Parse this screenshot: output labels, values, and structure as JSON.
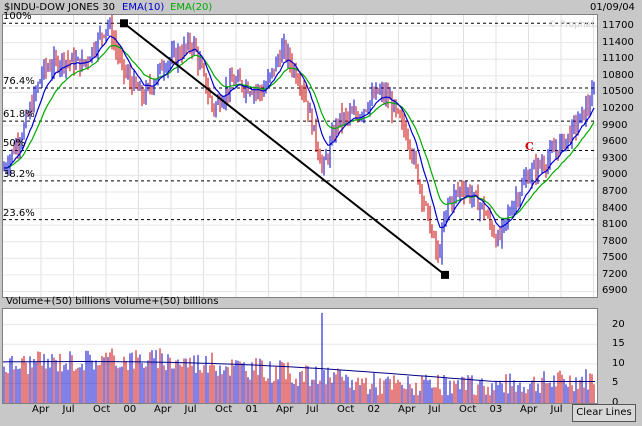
{
  "header": {
    "symbol": "$INDU-DOW JONES 30",
    "ema10_label": "EMA(10)",
    "ema20_label": "EMA(20)",
    "date": "01/09/04"
  },
  "colors": {
    "ema10": "#0000cc",
    "ema20": "#00aa00",
    "up_bar": "#0000cc",
    "down_bar": "#cc0000",
    "trend_line": "#000000",
    "annotation": "#cc0000"
  },
  "watermark": "© Prophet.Net",
  "annotation_text": "C",
  "fib_levels": [
    {
      "label": "100%",
      "price": 11750
    },
    {
      "label": "76.4%",
      "price": 10580
    },
    {
      "label": "61.8%",
      "price": 9980
    },
    {
      "label": "50%",
      "price": 9450
    },
    {
      "label": "38.2%",
      "price": 8900
    },
    {
      "label": "23.6%",
      "price": 8200
    }
  ],
  "price_axis_labels": [
    "11700",
    "11400",
    "11100",
    "10800",
    "10500",
    "10200",
    "9900",
    "9600",
    "9300",
    "9000",
    "8700",
    "8400",
    "8100",
    "7800",
    "7500",
    "7200",
    "6900"
  ],
  "volume_legend": [
    "Volume+(50) billions",
    "Volume+(50) billions"
  ],
  "volume_axis_labels": [
    "20",
    "15",
    "10",
    "5",
    "0"
  ],
  "x_axis_labels": [
    "Apr",
    "Jul",
    "Oct",
    "00",
    "Apr",
    "Jul",
    "Oct",
    "01",
    "Apr",
    "Jul",
    "Oct",
    "02",
    "Apr",
    "Jul",
    "Oct",
    "03",
    "Apr",
    "Jul",
    "Oc"
  ],
  "clear_lines_label": "Clear Lines",
  "chart_data": {
    "type": "bar",
    "title": "$INDU-DOW JONES 30",
    "ylim": [
      6800,
      11900
    ],
    "trend_line": {
      "start": {
        "x": "2000-01",
        "y": 11750
      },
      "end": {
        "x": "2002-10",
        "y": 7200
      }
    },
    "x_labels": [
      "Apr",
      "Jul",
      "Oct",
      "00",
      "Apr",
      "Jul",
      "Oct",
      "01",
      "Apr",
      "Jul",
      "Oct",
      "02",
      "Apr",
      "Jul",
      "Oct",
      "03",
      "Apr",
      "Jul",
      "Oc"
    ]
  }
}
